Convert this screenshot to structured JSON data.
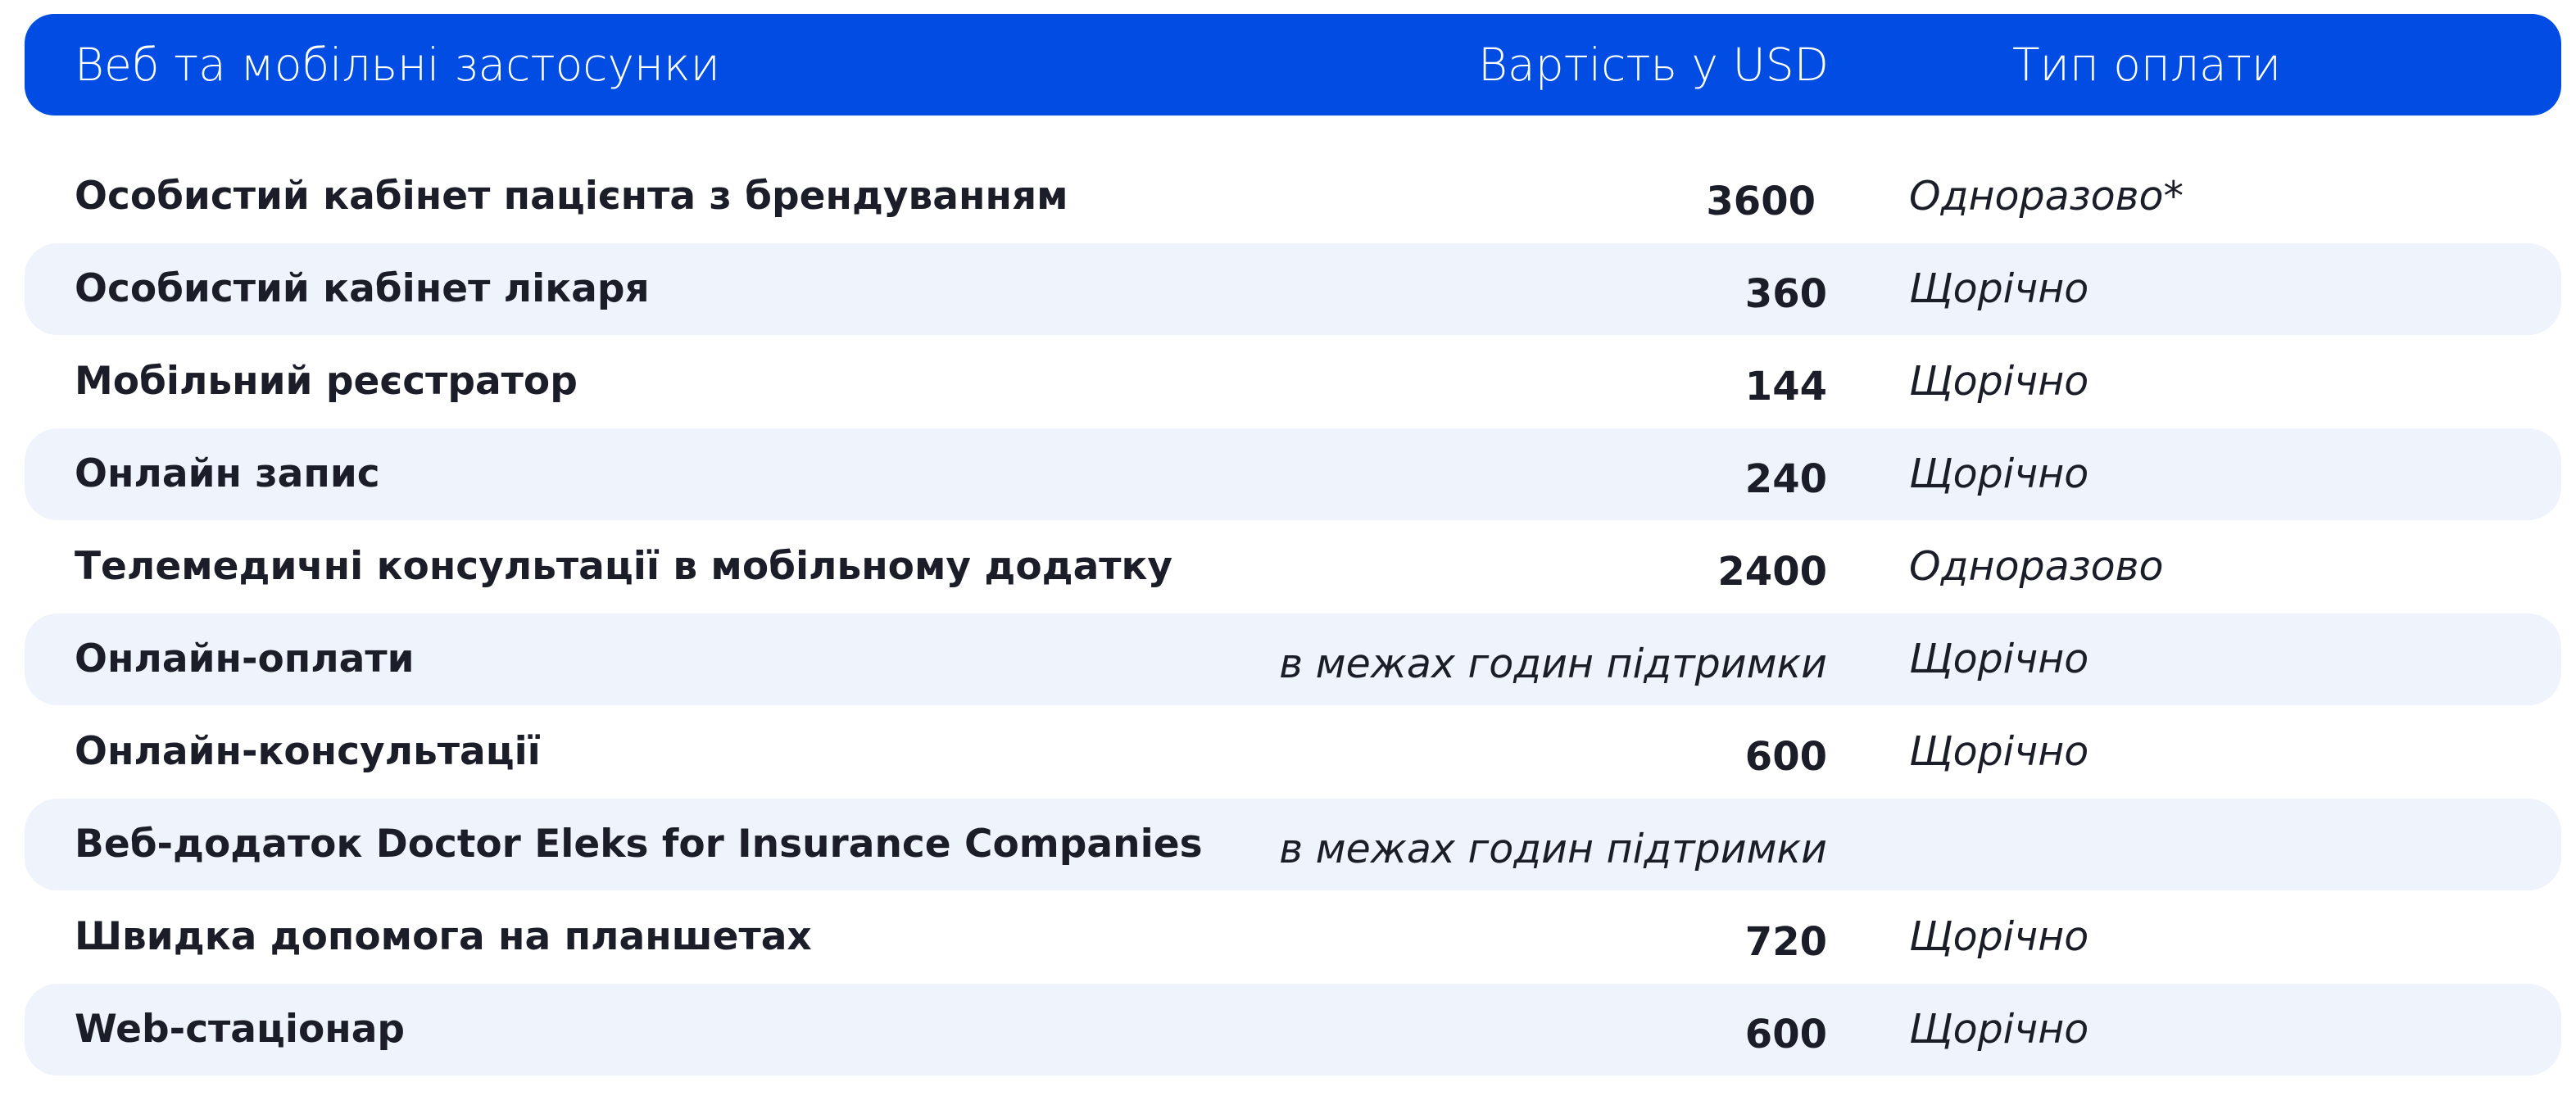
{
  "table": {
    "header": {
      "name": "Веб та мобільні застосунки",
      "price": "Вартість у USD",
      "payment_type": "Тип оплати"
    },
    "rows": [
      {
        "name": "Особистий кабінет пацієнта з брендуванням",
        "price": "3600",
        "payment_type": "Одноразово*"
      },
      {
        "name": "Особистий кабінет лікаря",
        "price": "360",
        "payment_type": "Щорічно"
      },
      {
        "name": "Мобільний реєстратор",
        "price": "144",
        "payment_type": "Щорічно"
      },
      {
        "name": "Онлайн запис",
        "price": "240",
        "payment_type": "Щорічно"
      },
      {
        "name": "Телемедичні консультації в мобільному додатку",
        "price": "2400",
        "payment_type": "Одноразово"
      },
      {
        "name": "Онлайн-оплати",
        "price": "в межах годин підтримки",
        "payment_type": "Щорічно"
      },
      {
        "name": "Онлайн-консультації",
        "price": "600",
        "payment_type": "Щорічно"
      },
      {
        "name": "Веб-додаток Doctor Eleks for Insurance Companies",
        "price": "в межах годин підтримки",
        "payment_type": ""
      },
      {
        "name": "Швидка допомога на планшетах",
        "price": "720",
        "payment_type": "Щорічно"
      },
      {
        "name": "Web-стаціонар",
        "price": "600",
        "payment_type": "Щорічно"
      }
    ]
  },
  "colors": {
    "header_background": "#014de4",
    "header_text": "#ffffff",
    "row_shade": "#eff3fb",
    "body_text": "#1b1d29"
  }
}
